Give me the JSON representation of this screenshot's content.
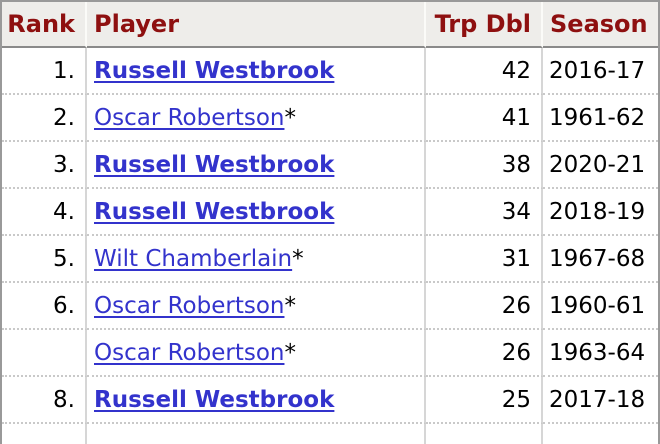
{
  "table": {
    "columns": [
      {
        "key": "rank",
        "label": "Rank",
        "align": "right"
      },
      {
        "key": "player",
        "label": "Player",
        "align": "left"
      },
      {
        "key": "trp_dbl",
        "label": "Trp Dbl",
        "align": "right"
      },
      {
        "key": "season",
        "label": "Season",
        "align": "left"
      }
    ],
    "rows": [
      {
        "rank": "1.",
        "player": "Russell Westbrook",
        "bold": true,
        "asterisk": "",
        "trp_dbl": "42",
        "season": "2016-17"
      },
      {
        "rank": "2.",
        "player": "Oscar Robertson",
        "bold": false,
        "asterisk": "*",
        "trp_dbl": "41",
        "season": "1961-62"
      },
      {
        "rank": "3.",
        "player": "Russell Westbrook",
        "bold": true,
        "asterisk": "",
        "trp_dbl": "38",
        "season": "2020-21"
      },
      {
        "rank": "4.",
        "player": "Russell Westbrook",
        "bold": true,
        "asterisk": "",
        "trp_dbl": "34",
        "season": "2018-19"
      },
      {
        "rank": "5.",
        "player": "Wilt Chamberlain",
        "bold": false,
        "asterisk": "*",
        "trp_dbl": "31",
        "season": "1967-68"
      },
      {
        "rank": "6.",
        "player": "Oscar Robertson",
        "bold": false,
        "asterisk": "*",
        "trp_dbl": "26",
        "season": "1960-61"
      },
      {
        "rank": "",
        "player": "Oscar Robertson",
        "bold": false,
        "asterisk": "*",
        "trp_dbl": "26",
        "season": "1963-64"
      },
      {
        "rank": "8.",
        "player": "Russell Westbrook",
        "bold": true,
        "asterisk": "",
        "trp_dbl": "25",
        "season": "2017-18"
      }
    ]
  },
  "colors": {
    "header_bg": "#eeedea",
    "header_text": "#8e1010",
    "link": "#3333cc",
    "body_text": "#000000",
    "outer_border": "#999999",
    "header_underline": "#8a8a8a",
    "column_separator_body": "#d6d6d6",
    "column_separator_header": "#fbfbf8",
    "row_dotted_separator": "#c9c9c9",
    "row_bg": "#ffffff"
  }
}
